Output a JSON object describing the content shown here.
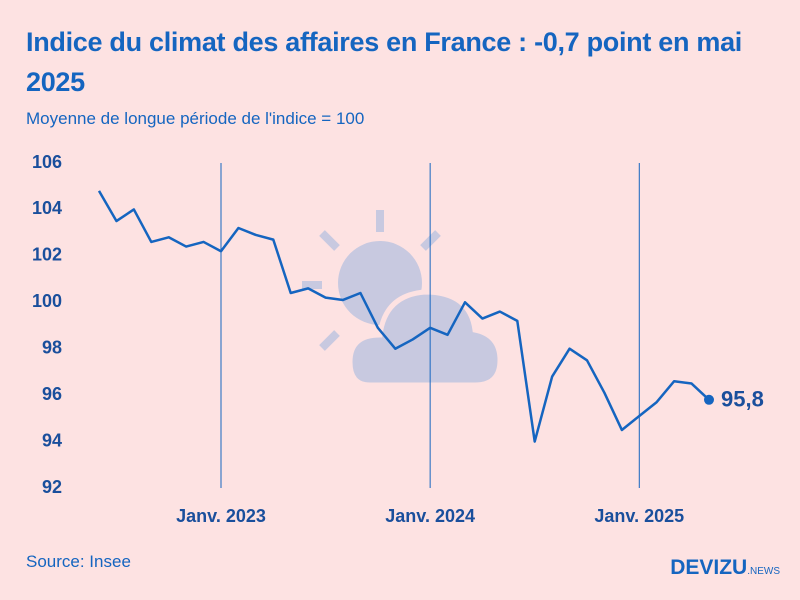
{
  "chart_data": {
    "type": "line",
    "title": "Indice du climat des affaires en France : -0,7 point en mai 2025",
    "subtitle": "Moyenne de longue période de l'indice = 100",
    "source": "Source: Insee",
    "brand": "DEVIZU",
    "brand_suffix": "NEWS",
    "categories": [
      null,
      null,
      null,
      null,
      null,
      null,
      null,
      "Janv. 2023",
      null,
      null,
      null,
      null,
      null,
      null,
      null,
      null,
      null,
      null,
      null,
      "Janv. 2024",
      null,
      null,
      null,
      null,
      null,
      null,
      null,
      null,
      null,
      null,
      null,
      "Janv. 2025",
      null,
      null,
      null,
      null
    ],
    "series": [
      {
        "color": "#1565c0",
        "values": [
          104.8,
          103.5,
          104.0,
          102.6,
          102.8,
          102.4,
          102.6,
          102.2,
          103.2,
          102.9,
          102.7,
          100.4,
          100.6,
          100.2,
          100.1,
          100.4,
          98.9,
          98.0,
          98.4,
          98.9,
          98.6,
          100.0,
          99.3,
          99.6,
          99.2,
          94.0,
          96.8,
          98.0,
          97.5,
          96.1,
          94.5,
          95.1,
          95.7,
          96.6,
          96.5,
          95.8
        ],
        "value_labels": [
          null,
          null,
          null,
          null,
          null,
          null,
          null,
          null,
          null,
          null,
          null,
          null,
          null,
          null,
          null,
          null,
          null,
          null,
          null,
          null,
          null,
          null,
          null,
          null,
          null,
          null,
          null,
          null,
          null,
          null,
          null,
          null,
          null,
          null,
          null,
          "95,8"
        ]
      }
    ],
    "ylim": [
      92,
      106
    ],
    "yticks": [
      92,
      94,
      96,
      98,
      100,
      102,
      104,
      106
    ],
    "grid": "x"
  }
}
